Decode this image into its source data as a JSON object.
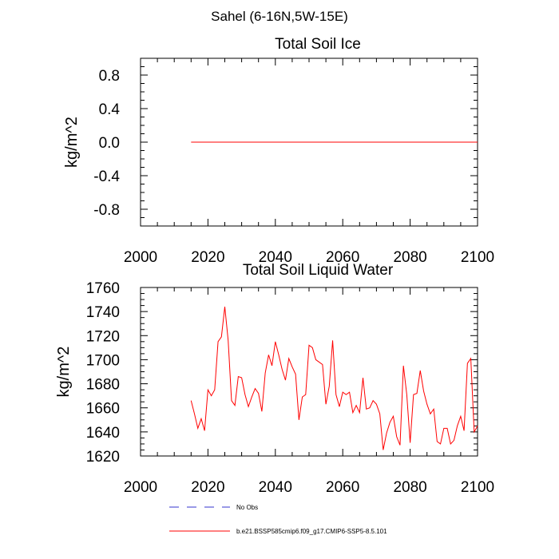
{
  "figure": {
    "title": "Sahel (6-16N,5W-15E)"
  },
  "legend": {
    "items": [
      {
        "label": "No Obs",
        "color": "#3333cc",
        "style": "dashed"
      },
      {
        "label": "b.e21.BSSP585cmip6.f09_g17.CMIP6-SSP5-8.5.101",
        "color": "#ff0000",
        "style": "solid"
      }
    ]
  },
  "chart_data": [
    {
      "type": "line",
      "title": "Total Soil Ice",
      "xlabel": "",
      "ylabel": "kg/m^2",
      "xlim": [
        2000,
        2100
      ],
      "ylim": [
        -1.0,
        1.0
      ],
      "xticks": [
        2000,
        2020,
        2040,
        2060,
        2080,
        2100
      ],
      "xtick_labels": [
        "2000",
        "2020",
        "2040",
        "2060",
        "2080",
        "2100"
      ],
      "yticks": [
        -0.8,
        -0.4,
        0.0,
        0.4,
        0.8
      ],
      "ytick_labels": [
        "-0.8",
        "-0.4",
        "0.0",
        "0.4",
        "0.8"
      ],
      "series": [
        {
          "name": "b.e21.BSSP585cmip6.f09_g17.CMIP6-SSP5-8.5.101",
          "color": "#ff0000",
          "x": [
            2015,
            2100
          ],
          "y": [
            0.0,
            0.0
          ]
        }
      ]
    },
    {
      "type": "line",
      "title": "Total Soil Liquid Water",
      "xlabel": "",
      "ylabel": "kg/m^2",
      "xlim": [
        2000,
        2100
      ],
      "ylim": [
        1620,
        1760
      ],
      "xticks": [
        2000,
        2020,
        2040,
        2060,
        2080,
        2100
      ],
      "xtick_labels": [
        "2000",
        "2020",
        "2040",
        "2060",
        "2080",
        "2100"
      ],
      "yticks": [
        1620,
        1640,
        1660,
        1680,
        1700,
        1720,
        1740,
        1760
      ],
      "ytick_labels": [
        "1620",
        "1640",
        "1660",
        "1680",
        "1700",
        "1720",
        "1740",
        "1760"
      ],
      "series": [
        {
          "name": "b.e21.BSSP585cmip6.f09_g17.CMIP6-SSP5-8.5.101",
          "color": "#ff0000",
          "x": [
            2015,
            2016,
            2017,
            2018,
            2019,
            2020,
            2021,
            2022,
            2023,
            2024,
            2025,
            2026,
            2027,
            2028,
            2029,
            2030,
            2031,
            2032,
            2033,
            2034,
            2035,
            2036,
            2037,
            2038,
            2039,
            2040,
            2041,
            2042,
            2043,
            2044,
            2045,
            2046,
            2047,
            2048,
            2049,
            2050,
            2051,
            2052,
            2053,
            2054,
            2055,
            2056,
            2057,
            2058,
            2059,
            2060,
            2061,
            2062,
            2063,
            2064,
            2065,
            2066,
            2067,
            2068,
            2069,
            2070,
            2071,
            2072,
            2073,
            2074,
            2075,
            2076,
            2077,
            2078,
            2079,
            2080,
            2081,
            2082,
            2083,
            2084,
            2085,
            2086,
            2087,
            2088,
            2089,
            2090,
            2091,
            2092,
            2093,
            2094,
            2095,
            2096,
            2097,
            2098,
            2099,
            2100
          ],
          "y": [
            1666,
            1655,
            1643,
            1651,
            1641,
            1675,
            1670,
            1675,
            1715,
            1719,
            1744,
            1716,
            1666,
            1662,
            1686,
            1685,
            1671,
            1661,
            1669,
            1676,
            1672,
            1657,
            1689,
            1704,
            1695,
            1715,
            1704,
            1692,
            1683,
            1701,
            1694,
            1688,
            1650,
            1669,
            1671,
            1712,
            1710,
            1700,
            1698,
            1696,
            1663,
            1678,
            1716,
            1671,
            1661,
            1673,
            1671,
            1673,
            1656,
            1662,
            1656,
            1685,
            1659,
            1660,
            1666,
            1663,
            1655,
            1625,
            1639,
            1648,
            1653,
            1636,
            1629,
            1695,
            1671,
            1631,
            1671,
            1672,
            1691,
            1674,
            1663,
            1655,
            1659,
            1632,
            1630,
            1643,
            1643,
            1630,
            1633,
            1645,
            1653,
            1641,
            1697,
            1701,
            1640,
            1645
          ]
        }
      ]
    }
  ]
}
